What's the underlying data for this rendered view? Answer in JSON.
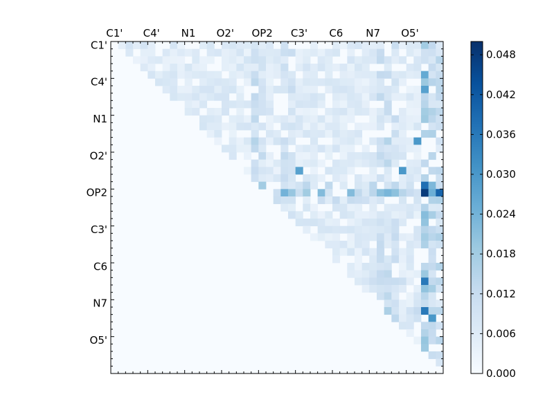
{
  "chart_data": {
    "type": "heatmap",
    "title": "",
    "xlabel": "",
    "ylabel": "",
    "x_tick_labels": [
      "C1'",
      "C4'",
      "N1",
      "O2'",
      "OP2",
      "C3'",
      "C6",
      "N7",
      "O5'"
    ],
    "y_tick_labels": [
      "C1'",
      "C4'",
      "N1",
      "O2'",
      "OP2",
      "C3'",
      "C6",
      "N7",
      "O5'"
    ],
    "x_label_position": "top",
    "grid": false,
    "matrix_size": 45,
    "matrix_layout": "upper-triangle",
    "colormap": "Blues",
    "colorbar": {
      "range": [
        0.0,
        0.05
      ],
      "ticks": [
        "0.000",
        "0.006",
        "0.012",
        "0.018",
        "0.024",
        "0.030",
        "0.036",
        "0.042",
        "0.048"
      ],
      "placement": "right"
    },
    "highlighted_cells": [
      {
        "row": 20,
        "col": 42,
        "value": 0.048
      },
      {
        "row": 19,
        "col": 42,
        "value": 0.038
      },
      {
        "row": 20,
        "col": 44,
        "value": 0.04
      },
      {
        "row": 32,
        "col": 42,
        "value": 0.036
      },
      {
        "row": 36,
        "col": 42,
        "value": 0.036
      },
      {
        "row": 37,
        "col": 43,
        "value": 0.03
      },
      {
        "row": 17,
        "col": 25,
        "value": 0.028
      },
      {
        "row": 17,
        "col": 39,
        "value": 0.03
      },
      {
        "row": 13,
        "col": 41,
        "value": 0.03
      },
      {
        "row": 6,
        "col": 42,
        "value": 0.028
      },
      {
        "row": 4,
        "col": 42,
        "value": 0.026
      },
      {
        "row": 20,
        "col": 23,
        "value": 0.024
      },
      {
        "row": 20,
        "col": 28,
        "value": 0.022
      },
      {
        "row": 20,
        "col": 32,
        "value": 0.022
      }
    ]
  }
}
